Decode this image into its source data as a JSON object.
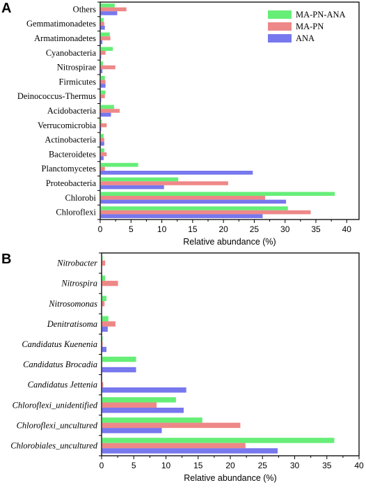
{
  "chart_data": [
    {
      "type": "bar",
      "orientation": "horizontal",
      "panel": "A",
      "categories": [
        "Others",
        "Gemmatimonadetes",
        "Armatimonadetes",
        "Cyanobacteria",
        "Nitrospirae",
        "Firmicutes",
        "Deinococcus-Thermus",
        "Acidobacteria",
        "Verrucomicrobia",
        "Actinobacteria",
        "Bacteroidetes",
        "Planctomycetes",
        "Proteobacteria",
        "Chlorobi",
        "Chloroflexi"
      ],
      "series": [
        {
          "name": "MA-PN-ANA",
          "color": "#66ee77",
          "values": [
            2.3,
            0.5,
            1.5,
            2.0,
            0.4,
            0.7,
            0.8,
            2.2,
            0.2,
            0.5,
            0.6,
            6.1,
            12.6,
            38.0,
            30.4
          ]
        },
        {
          "name": "MA-PN",
          "color": "#ee8888",
          "values": [
            4.2,
            0.6,
            1.6,
            0.8,
            2.4,
            0.8,
            0.7,
            3.1,
            1.0,
            0.6,
            1.0,
            0.7,
            20.7,
            26.7,
            34.1
          ]
        },
        {
          "name": "ANA",
          "color": "#7777ee",
          "values": [
            2.7,
            0.7,
            0.3,
            0.1,
            0.3,
            0.8,
            0.1,
            1.7,
            0.1,
            0.6,
            0.5,
            24.7,
            10.3,
            30.1,
            26.3
          ]
        }
      ],
      "xlabel": "Relative abundance (%)",
      "ylabel": "",
      "xlim": [
        0,
        42
      ],
      "xticks": [
        0,
        5,
        10,
        15,
        20,
        25,
        30,
        35,
        40
      ],
      "legend_position": "top-right"
    },
    {
      "type": "bar",
      "orientation": "horizontal",
      "panel": "B",
      "categories": [
        "Nitrobacter",
        "Nitrospira",
        "Nitrosomonas",
        "Denitratisoma",
        "Candidatus Kuenenia",
        "Candidatus Brocadia",
        "Candidatus Jettenia",
        "Chloroflexi_unidentified",
        "Chloroflexi_uncultured",
        "Chlorobiales_uncultured"
      ],
      "series": [
        {
          "name": "MA-PN-ANA",
          "color": "#66ee77",
          "values": [
            0.1,
            0.5,
            0.7,
            1.0,
            0.1,
            5.3,
            0.0,
            11.5,
            15.6,
            36.1
          ]
        },
        {
          "name": "MA-PN",
          "color": "#ee8888",
          "values": [
            0.5,
            2.5,
            0.4,
            2.1,
            0.1,
            0.0,
            0.2,
            8.5,
            21.5,
            22.3
          ]
        },
        {
          "name": "ANA",
          "color": "#7777ee",
          "values": [
            0.0,
            0.0,
            0.0,
            0.9,
            0.7,
            5.3,
            13.1,
            12.7,
            9.3,
            27.3
          ]
        }
      ],
      "xlabel": "Relative abundance (%)",
      "ylabel": "",
      "xlim": [
        0,
        40
      ],
      "xticks": [
        0,
        5,
        10,
        15,
        20,
        25,
        30,
        35,
        40
      ]
    }
  ],
  "figure": {
    "panel_a_label": "A",
    "panel_b_label": "B"
  },
  "legend": {
    "items": [
      {
        "label": "MA-PN-ANA",
        "color": "#66ee77"
      },
      {
        "label": "MA-PN",
        "color": "#ee8888"
      },
      {
        "label": "ANA",
        "color": "#7777ee"
      }
    ]
  }
}
